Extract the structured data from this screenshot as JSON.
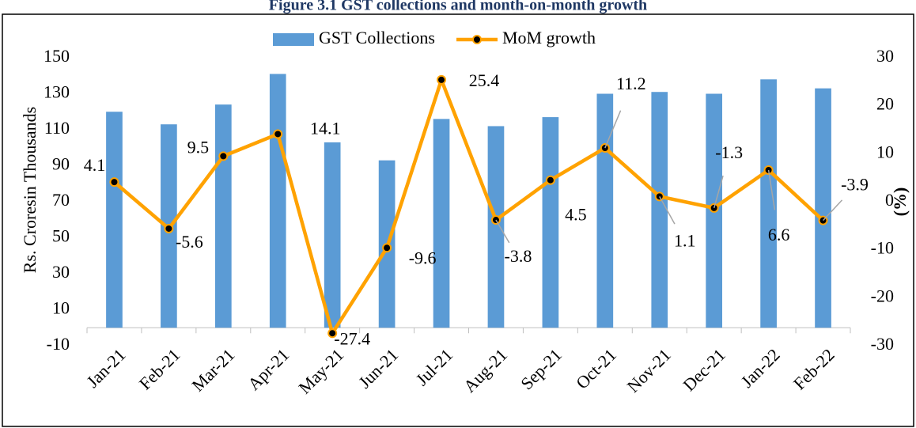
{
  "chart_data": {
    "type": "bar",
    "title": "Figure 3.1 GST collections and month-on-month growth",
    "categories": [
      "Jan-21",
      "Feb-21",
      "Mar-21",
      "Apr-21",
      "May-21",
      "Jun-21",
      "Jul-21",
      "Aug-21",
      "Sep-21",
      "Oct-21",
      "Nov-21",
      "Dec-21",
      "Jan-22",
      "Feb-22"
    ],
    "series": [
      {
        "name": "GST Collections",
        "type": "bar",
        "color": "#5b9bd5",
        "values": [
          120,
          113,
          124,
          141,
          103,
          93,
          116,
          112,
          117,
          130,
          131,
          130,
          138,
          133
        ]
      },
      {
        "name": "MoM growth",
        "type": "line",
        "axis": "y2",
        "color": "#ffa200",
        "values": [
          4.1,
          -5.6,
          9.5,
          14.1,
          -27.4,
          -9.6,
          25.4,
          -3.8,
          4.5,
          11.2,
          1.1,
          -1.3,
          6.6,
          -3.9
        ]
      }
    ],
    "y_label": "Rs. Croresin Thousands",
    "y2_label": "(%)",
    "ylim": [
      -10,
      150
    ],
    "yticks": [
      -10,
      10,
      30,
      50,
      70,
      90,
      110,
      130,
      150
    ],
    "y2lim": [
      -30,
      30
    ],
    "y2ticks": [
      -30,
      -20,
      -10,
      0,
      10,
      20,
      30
    ],
    "legend": "top"
  }
}
